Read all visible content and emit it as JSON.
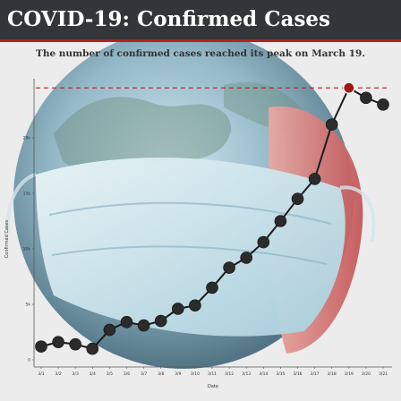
{
  "header": {
    "title": "COVID-19: Confirmed Cases",
    "subtitle": "The number of confirmed cases reached its peak on March 19."
  },
  "colors": {
    "title_bg": "#333538",
    "title_text": "#ffffff",
    "accent": "#b22222",
    "line": "#1a1a1a",
    "marker": "#2b2b2b",
    "peak_marker": "#a01818",
    "peak_line": "#b22222",
    "background": "#ececec"
  },
  "background_illustration": "globe-with-face-mask",
  "chart_data": {
    "type": "line",
    "title": "COVID-19: Confirmed Cases",
    "subtitle": "The number of confirmed cases reached its peak on March 19.",
    "xlabel": "Date",
    "ylabel": "Confirmed Cases",
    "categories": [
      "3/1",
      "3/2",
      "3/3",
      "3/4",
      "3/5",
      "3/6",
      "3/7",
      "3/8",
      "3/9",
      "3/10",
      "3/11",
      "3/12",
      "3/13",
      "3/14",
      "3/15",
      "3/16",
      "3/17",
      "3/18",
      "3/19",
      "3/20",
      "3/21"
    ],
    "values": [
      1200,
      1600,
      1400,
      1000,
      2700,
      3400,
      3100,
      3500,
      4600,
      4900,
      6500,
      8300,
      9200,
      10600,
      12500,
      14500,
      16300,
      21200,
      24500,
      23600,
      23000
    ],
    "ylim": [
      0,
      25000
    ],
    "yticks": [
      0,
      5000,
      10000,
      15000,
      20000
    ],
    "ytick_labels": [
      "0",
      "5k",
      "10k",
      "15k",
      "20k"
    ],
    "peak": {
      "x": "3/19",
      "y": 24500
    },
    "peak_reference_line": "dashed",
    "grid": false,
    "legend": "none"
  }
}
